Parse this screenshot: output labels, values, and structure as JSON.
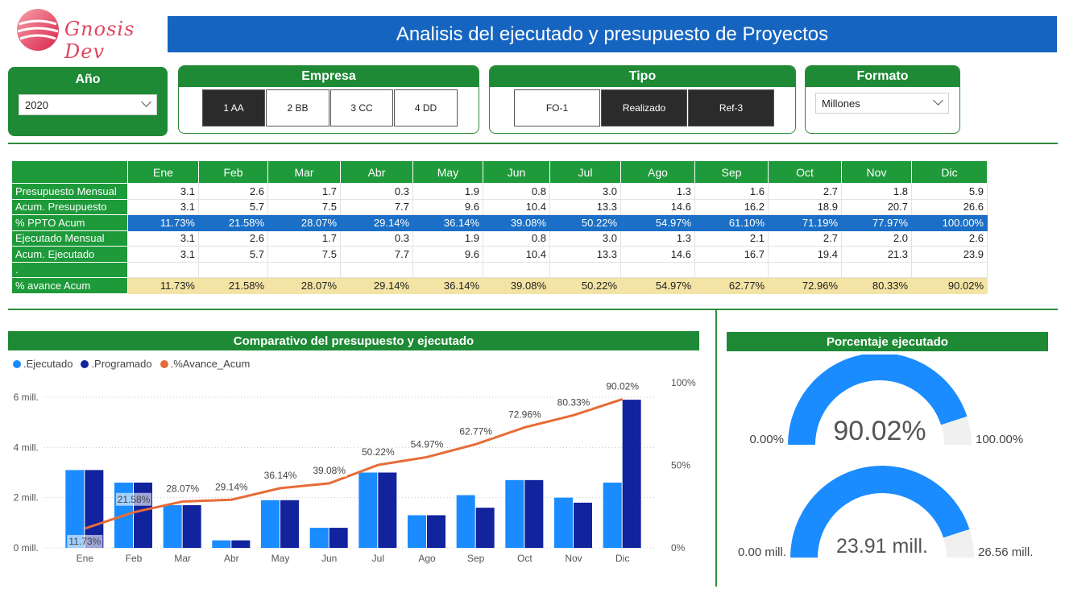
{
  "brand": {
    "name": "Gnosis Dev"
  },
  "title": "Analisis del ejecutado y presupuesto de Proyectos",
  "filters": {
    "year": {
      "label": "Año",
      "value": "2020"
    },
    "empresa": {
      "label": "Empresa",
      "options": [
        "1 AA",
        "2 BB",
        "3 CC",
        "4 DD"
      ],
      "selected": "1 AA"
    },
    "tipo": {
      "label": "Tipo",
      "options": [
        "FO-1",
        "Realizado",
        "Ref-3"
      ],
      "selected": [
        "Realizado",
        "Ref-3"
      ]
    },
    "formato": {
      "label": "Formato",
      "value": "Millones"
    }
  },
  "table": {
    "months": [
      "Ene",
      "Feb",
      "Mar",
      "Abr",
      "May",
      "Jun",
      "Jul",
      "Ago",
      "Sep",
      "Oct",
      "Nov",
      "Dic"
    ],
    "rows": [
      {
        "label": "Presupuesto Mensual",
        "style": "plain",
        "values": [
          "3.1",
          "2.6",
          "1.7",
          "0.3",
          "1.9",
          "0.8",
          "3.0",
          "1.3",
          "1.6",
          "2.7",
          "1.8",
          "5.9"
        ]
      },
      {
        "label": "Acum. Presupuesto",
        "style": "plain",
        "values": [
          "3.1",
          "5.7",
          "7.5",
          "7.7",
          "9.6",
          "10.4",
          "13.3",
          "14.6",
          "16.2",
          "18.9",
          "20.7",
          "26.6"
        ]
      },
      {
        "label": "% PPTO Acum",
        "style": "ppto",
        "values": [
          "11.73%",
          "21.58%",
          "28.07%",
          "29.14%",
          "36.14%",
          "39.08%",
          "50.22%",
          "54.97%",
          "61.10%",
          "71.19%",
          "77.97%",
          "100.00%"
        ]
      },
      {
        "label": "Ejecutado Mensual",
        "style": "plain",
        "values": [
          "3.1",
          "2.6",
          "1.7",
          "0.3",
          "1.9",
          "0.8",
          "3.0",
          "1.3",
          "2.1",
          "2.7",
          "2.0",
          "2.6"
        ]
      },
      {
        "label": "Acum. Ejecutado",
        "style": "plain",
        "values": [
          "3.1",
          "5.7",
          "7.5",
          "7.7",
          "9.6",
          "10.4",
          "13.3",
          "14.6",
          "16.7",
          "19.4",
          "21.3",
          "23.9"
        ]
      },
      {
        "label": ".",
        "style": "plain",
        "values": [
          "",
          "",
          "",
          "",
          "",
          "",
          "",
          "",
          "",
          "",
          "",
          ""
        ]
      },
      {
        "label": "% avance Acum",
        "style": "avance",
        "values": [
          "11.73%",
          "21.58%",
          "28.07%",
          "29.14%",
          "36.14%",
          "39.08%",
          "50.22%",
          "54.97%",
          "62.77%",
          "72.96%",
          "80.33%",
          "90.02%"
        ]
      }
    ]
  },
  "combo": {
    "title": "Comparativo del presupuesto y ejecutado",
    "legend": [
      {
        "name": ".Ejecutado",
        "color": "#1a8cff"
      },
      {
        "name": ".Programado",
        "color": "#12239e"
      },
      {
        "name": ".%Avance_Acum",
        "color": "#e66c37"
      }
    ]
  },
  "gauges": {
    "title": "Porcentaje ejecutado",
    "pct": {
      "value_label": "90.02%",
      "min_label": "0.00%",
      "max_label": "100.00%",
      "fraction": 0.9002
    },
    "amount": {
      "value_label": "23.91 mill.",
      "min_label": "0.00 mill.",
      "max_label": "26.56 mill.",
      "fraction": 0.9002
    }
  },
  "chart_data": {
    "type": "bar",
    "categories": [
      "Ene",
      "Feb",
      "Mar",
      "Abr",
      "May",
      "Jun",
      "Jul",
      "Ago",
      "Sep",
      "Oct",
      "Nov",
      "Dic"
    ],
    "series": [
      {
        "name": ".Ejecutado",
        "type": "bar",
        "values": [
          3.1,
          2.6,
          1.7,
          0.3,
          1.9,
          0.8,
          3.0,
          1.3,
          2.1,
          2.7,
          2.0,
          2.6
        ]
      },
      {
        "name": ".Programado",
        "type": "bar",
        "values": [
          3.1,
          2.6,
          1.7,
          0.3,
          1.9,
          0.8,
          3.0,
          1.3,
          1.6,
          2.7,
          1.8,
          5.9
        ]
      },
      {
        "name": ".%Avance_Acum",
        "type": "line",
        "axis": "secondary",
        "values": [
          11.73,
          21.58,
          28.07,
          29.14,
          36.14,
          39.08,
          50.22,
          54.97,
          62.77,
          72.96,
          80.33,
          90.02
        ]
      }
    ],
    "point_labels": [
      "11.73%",
      "21.58%",
      "28.07%",
      "29.14%",
      "36.14%",
      "39.08%",
      "50.22%",
      "54.97%",
      "62.77%",
      "72.96%",
      "80.33%",
      "90.02%"
    ],
    "ylim": [
      0,
      6
    ],
    "y_ticks": [
      0,
      2,
      4,
      6
    ],
    "y_tick_labels": [
      "0 mill.",
      "2 mill.",
      "4 mill.",
      "6 mill."
    ],
    "y2lim": [
      0,
      100
    ],
    "y2_ticks": [
      0,
      50,
      100
    ],
    "y2_tick_labels": [
      "0%",
      "50%",
      "100%"
    ],
    "grid": true,
    "legend_position": "top-left"
  }
}
